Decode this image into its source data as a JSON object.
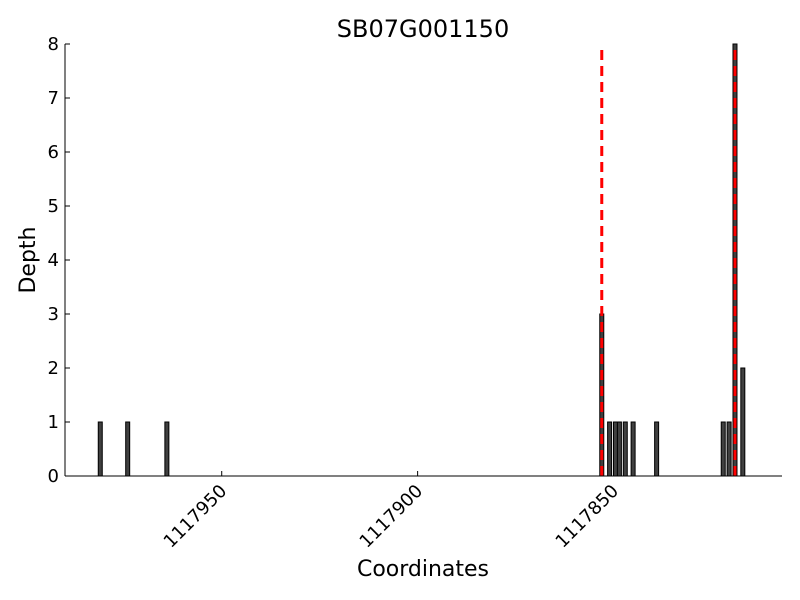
{
  "chart_data": {
    "type": "bar",
    "title": "SB07G001150",
    "xlabel": "Coordinates",
    "ylabel": "Depth",
    "x_reversed": true,
    "xlim": [
      1117990,
      1117807
    ],
    "ylim": [
      0,
      8
    ],
    "x_ticks": [
      1117950,
      1117900,
      1117850
    ],
    "x_tick_labels": [
      "1117950",
      "1117900",
      "1117850"
    ],
    "y_ticks": [
      0,
      1,
      2,
      3,
      4,
      5,
      6,
      7,
      8
    ],
    "y_tick_labels": [
      "0",
      "1",
      "2",
      "3",
      "4",
      "5",
      "6",
      "7",
      "8"
    ],
    "bar_color": "#404040",
    "marker_color": "#ff0000",
    "grid": false,
    "legend": "none",
    "bars": [
      {
        "x": 1117981,
        "depth": 1
      },
      {
        "x": 1117974,
        "depth": 1
      },
      {
        "x": 1117964,
        "depth": 1
      },
      {
        "x": 1117853,
        "depth": 3
      },
      {
        "x": 1117851,
        "depth": 1
      },
      {
        "x": 1117849.5,
        "depth": 1
      },
      {
        "x": 1117848.5,
        "depth": 1
      },
      {
        "x": 1117847,
        "depth": 1
      },
      {
        "x": 1117845,
        "depth": 1
      },
      {
        "x": 1117839,
        "depth": 1
      },
      {
        "x": 1117822,
        "depth": 1
      },
      {
        "x": 1117820.5,
        "depth": 1
      },
      {
        "x": 1117819,
        "depth": 8
      },
      {
        "x": 1117817,
        "depth": 2
      }
    ],
    "markers": [
      {
        "x": 1117853,
        "style": "dashed"
      },
      {
        "x": 1117819,
        "style": "dashed"
      }
    ]
  }
}
